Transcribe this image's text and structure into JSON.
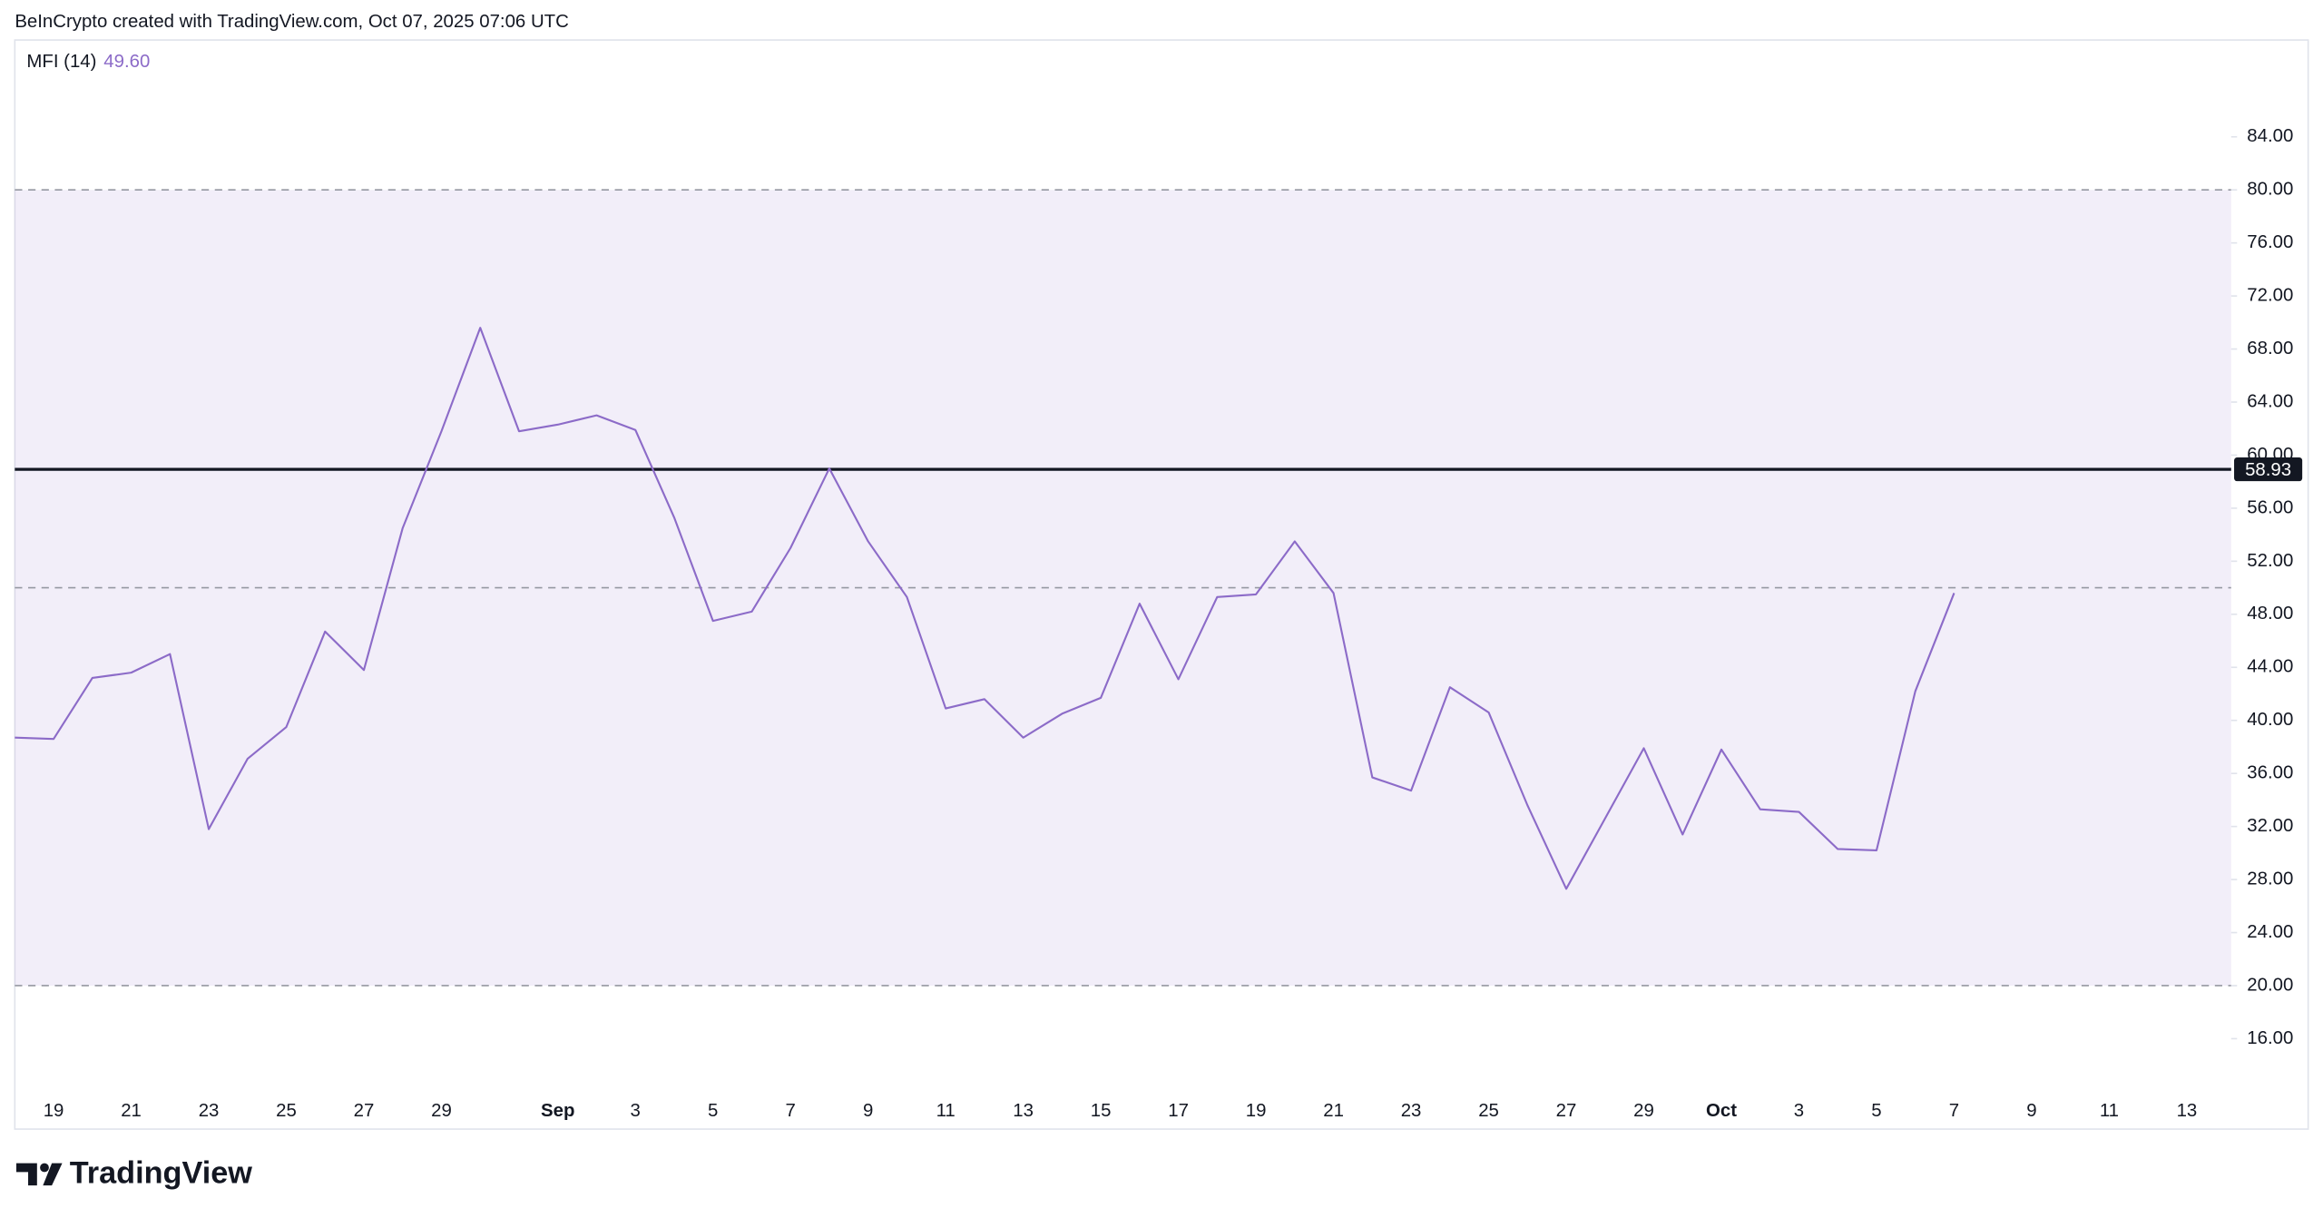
{
  "header": {
    "text": "BeInCrypto created with TradingView.com, Oct 07, 2025 07:06 UTC"
  },
  "footer": {
    "brand": "TradingView"
  },
  "chart_data": {
    "type": "line",
    "title": "MFI (14)",
    "current_value": {
      "value": 49.6,
      "label": "49.60"
    },
    "categories": [
      null,
      "19",
      null,
      "21",
      null,
      "23",
      null,
      "25",
      null,
      "27",
      null,
      "29",
      null,
      null,
      "Sep",
      null,
      "3",
      null,
      "5",
      null,
      "7",
      null,
      "9",
      null,
      "11",
      null,
      "13",
      null,
      "15",
      null,
      "17",
      null,
      "19",
      null,
      "21",
      null,
      "23",
      null,
      "25",
      null,
      "27",
      null,
      "29",
      null,
      "Oct",
      null,
      "3",
      null,
      "5",
      null,
      "7",
      null,
      "9",
      null,
      "11",
      null,
      "13"
    ],
    "series": [
      {
        "name": "MFI",
        "color": "#8c6bc8",
        "values": [
          38.7,
          38.6,
          43.2,
          43.6,
          45.0,
          31.8,
          37.1,
          39.5,
          46.7,
          43.8,
          54.5,
          61.8,
          69.6,
          61.8,
          62.3,
          63.0,
          61.9,
          55.3,
          47.5,
          48.2,
          53.0,
          59.0,
          53.5,
          49.3,
          40.9,
          41.6,
          38.7,
          40.5,
          41.7,
          48.8,
          43.1,
          49.3,
          49.5,
          53.5,
          49.6,
          35.7,
          34.7,
          42.5,
          40.6,
          33.6,
          27.3,
          32.6,
          37.9,
          31.4,
          37.8,
          33.3,
          33.1,
          30.3,
          30.2,
          42.2,
          49.6,
          null,
          null,
          null,
          null,
          null,
          null
        ]
      }
    ],
    "ylim": [
      12.2,
      91.3
    ],
    "yticks": [
      {
        "value": 16,
        "label": "16.00"
      },
      {
        "value": 20,
        "label": "20.00"
      },
      {
        "value": 24,
        "label": "24.00"
      },
      {
        "value": 28,
        "label": "28.00"
      },
      {
        "value": 32,
        "label": "32.00"
      },
      {
        "value": 36,
        "label": "36.00"
      },
      {
        "value": 40,
        "label": "40.00"
      },
      {
        "value": 44,
        "label": "44.00"
      },
      {
        "value": 48,
        "label": "48.00"
      },
      {
        "value": 52,
        "label": "52.00"
      },
      {
        "value": 56,
        "label": "56.00"
      },
      {
        "value": 60,
        "label": "60.00"
      },
      {
        "value": 64,
        "label": "64.00"
      },
      {
        "value": 68,
        "label": "68.00"
      },
      {
        "value": 72,
        "label": "72.00"
      },
      {
        "value": 76,
        "label": "76.00"
      },
      {
        "value": 80,
        "label": "80.00"
      },
      {
        "value": 84,
        "label": "84.00"
      }
    ],
    "band": [
      20,
      80
    ],
    "middle_line": 50,
    "price_line": 58.93,
    "band_color": "#7e57c2"
  }
}
